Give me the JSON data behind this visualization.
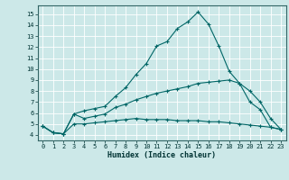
{
  "xlabel": "Humidex (Indice chaleur)",
  "bg_color": "#cce8e8",
  "grid_color": "#ffffff",
  "line_color": "#006666",
  "xlim": [
    -0.5,
    23.5
  ],
  "ylim": [
    3.5,
    15.8
  ],
  "xticks": [
    0,
    1,
    2,
    3,
    4,
    5,
    6,
    7,
    8,
    9,
    10,
    11,
    12,
    13,
    14,
    15,
    16,
    17,
    18,
    19,
    20,
    21,
    22,
    23
  ],
  "yticks": [
    4,
    5,
    6,
    7,
    8,
    9,
    10,
    11,
    12,
    13,
    14,
    15
  ],
  "line1_x": [
    0,
    1,
    2,
    3,
    4,
    5,
    6,
    7,
    8,
    9,
    10,
    11,
    12,
    13,
    14,
    15,
    16,
    17,
    18,
    19,
    20,
    21,
    22,
    23
  ],
  "line1_y": [
    4.8,
    4.2,
    4.1,
    5.9,
    6.2,
    6.4,
    6.6,
    7.5,
    8.3,
    9.5,
    10.5,
    12.1,
    12.5,
    13.7,
    14.3,
    15.2,
    14.1,
    12.1,
    9.8,
    8.7,
    7.0,
    6.3,
    4.7,
    4.5
  ],
  "line2_x": [
    0,
    1,
    2,
    3,
    4,
    5,
    6,
    7,
    8,
    9,
    10,
    11,
    12,
    13,
    14,
    15,
    16,
    17,
    18,
    19,
    20,
    21,
    22,
    23
  ],
  "line2_y": [
    4.8,
    4.2,
    4.1,
    5.9,
    5.5,
    5.7,
    5.9,
    6.5,
    6.8,
    7.2,
    7.5,
    7.8,
    8.0,
    8.2,
    8.4,
    8.7,
    8.8,
    8.9,
    9.0,
    8.7,
    8.0,
    7.0,
    5.5,
    4.5
  ],
  "line3_x": [
    0,
    1,
    2,
    3,
    4,
    5,
    6,
    7,
    8,
    9,
    10,
    11,
    12,
    13,
    14,
    15,
    16,
    17,
    18,
    19,
    20,
    21,
    22,
    23
  ],
  "line3_y": [
    4.8,
    4.2,
    4.1,
    5.0,
    5.0,
    5.1,
    5.2,
    5.3,
    5.4,
    5.5,
    5.4,
    5.4,
    5.4,
    5.3,
    5.3,
    5.3,
    5.2,
    5.2,
    5.1,
    5.0,
    4.9,
    4.8,
    4.7,
    4.5
  ],
  "tick_fontsize": 5.0,
  "xlabel_fontsize": 6.0
}
